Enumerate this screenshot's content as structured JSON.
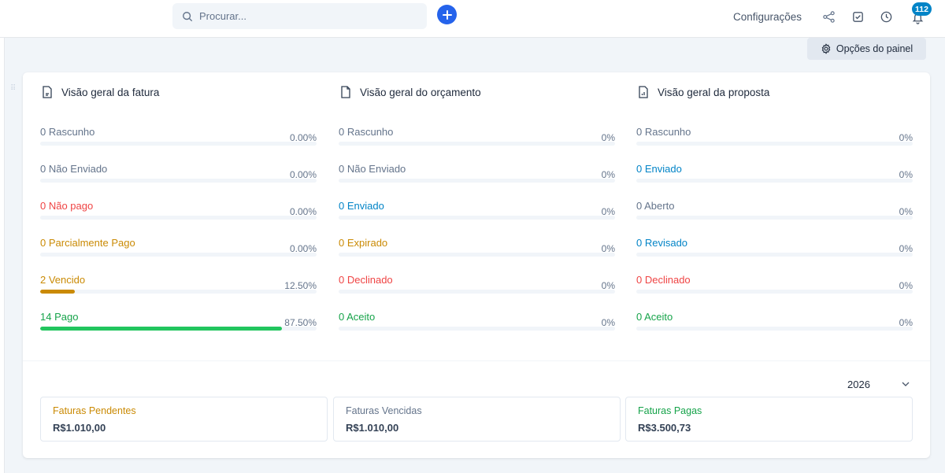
{
  "header": {
    "search_placeholder": "Procurar...",
    "settings_label": "Configurações",
    "notifications_count": "112"
  },
  "panel_options_label": "Opções do painel",
  "colors": {
    "gray": "#64748b",
    "red": "#ef4444",
    "orange": "#ca8a04",
    "green": "#22c55e",
    "blue": "#0284c7",
    "textgreen": "#16a34a"
  },
  "overview": [
    {
      "title": "Visão geral da fatura",
      "icon": "invoice-icon",
      "rows": [
        {
          "label": "0 Rascunho",
          "percent": "0.00%",
          "color": "gray",
          "fill": 0
        },
        {
          "label": "0 Não Enviado",
          "percent": "0.00%",
          "color": "gray",
          "fill": 0
        },
        {
          "label": "0 Não pago",
          "percent": "0.00%",
          "color": "red",
          "fill": 0
        },
        {
          "label": "0 Parcialmente Pago",
          "percent": "0.00%",
          "color": "orange",
          "fill": 0
        },
        {
          "label": "2 Vencido",
          "percent": "12.50%",
          "color": "orange",
          "fill": 12.5
        },
        {
          "label": "14 Pago",
          "percent": "87.50%",
          "color": "textgreen",
          "fill": 87.5
        }
      ]
    },
    {
      "title": "Visão geral do orçamento",
      "icon": "estimate-icon",
      "rows": [
        {
          "label": "0 Rascunho",
          "percent": "0%",
          "color": "gray",
          "fill": 0
        },
        {
          "label": "0 Não Enviado",
          "percent": "0%",
          "color": "gray",
          "fill": 0
        },
        {
          "label": "0 Enviado",
          "percent": "0%",
          "color": "blue",
          "fill": 0
        },
        {
          "label": "0 Expirado",
          "percent": "0%",
          "color": "orange",
          "fill": 0
        },
        {
          "label": "0 Declinado",
          "percent": "0%",
          "color": "red",
          "fill": 0
        },
        {
          "label": "0 Aceito",
          "percent": "0%",
          "color": "textgreen",
          "fill": 0
        }
      ]
    },
    {
      "title": "Visão geral da proposta",
      "icon": "proposal-icon",
      "rows": [
        {
          "label": "0 Rascunho",
          "percent": "0%",
          "color": "gray",
          "fill": 0
        },
        {
          "label": "0 Enviado",
          "percent": "0%",
          "color": "blue",
          "fill": 0
        },
        {
          "label": "0 Aberto",
          "percent": "0%",
          "color": "gray",
          "fill": 0
        },
        {
          "label": "0 Revisado",
          "percent": "0%",
          "color": "blue",
          "fill": 0
        },
        {
          "label": "0 Declinado",
          "percent": "0%",
          "color": "red",
          "fill": 0
        },
        {
          "label": "0 Aceito",
          "percent": "0%",
          "color": "textgreen",
          "fill": 0
        }
      ]
    }
  ],
  "year_select": "2026",
  "stats": [
    {
      "title": "Faturas Pendentes",
      "value": "R$1.010,00",
      "color": "orange"
    },
    {
      "title": "Faturas Vencidas",
      "value": "R$1.010,00",
      "color": "gray"
    },
    {
      "title": "Faturas Pagas",
      "value": "R$3.500,73",
      "color": "textgreen"
    }
  ]
}
